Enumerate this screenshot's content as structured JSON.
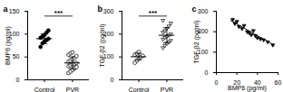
{
  "chart_data": [
    {
      "type": "dotplot",
      "title": "a",
      "y_label": "BMP6 (pg/ml)",
      "ylim": [
        0,
        150
      ],
      "yticks": [
        0,
        50,
        100,
        150
      ],
      "annotation": "***",
      "series": [
        {
          "name": "Control",
          "color": "#000000",
          "marker": "circle",
          "values": [
            72,
            80,
            84,
            87,
            90,
            92,
            95,
            98,
            103,
            108
          ],
          "mean": 90,
          "error": 11
        },
        {
          "name": "PVR",
          "color": "#000000",
          "marker": "circle-open",
          "values": [
            15,
            18,
            22,
            25,
            28,
            30,
            32,
            34,
            35,
            37,
            40,
            42,
            45,
            48,
            52,
            55,
            58,
            60
          ],
          "mean": 37,
          "error": 13
        }
      ]
    },
    {
      "type": "dotplot",
      "title": "b",
      "y_label": "TGF-β2 (pg/ml)",
      "ylim": [
        0,
        300
      ],
      "yticks": [
        0,
        100,
        200,
        300
      ],
      "annotation": "***",
      "series": [
        {
          "name": "Control",
          "color": "#000000",
          "marker": "circle-open",
          "values": [
            75,
            85,
            95,
            100,
            105,
            110,
            115,
            122
          ],
          "mean": 101,
          "error": 15
        },
        {
          "name": "PVR",
          "color": "#000000",
          "marker": "triangle-down-open",
          "values": [
            140,
            150,
            160,
            165,
            172,
            178,
            185,
            190,
            195,
            200,
            208,
            215,
            225,
            235,
            248,
            260
          ],
          "mean": 195,
          "error": 33
        }
      ]
    },
    {
      "type": "scatter",
      "title": "c",
      "x_label": "BMP6 (pg/ml)",
      "y_label": "TGF-β2 (pg/ml)",
      "xlim": [
        0,
        60
      ],
      "xticks": [
        0,
        20,
        40,
        60
      ],
      "ylim": [
        0,
        300
      ],
      "yticks": [
        0,
        100,
        200,
        300
      ],
      "color": "#000000",
      "marker": "triangle-down",
      "x": [
        16,
        18,
        20,
        22,
        25,
        27,
        30,
        32,
        34,
        36,
        38,
        40,
        43,
        46,
        50,
        55
      ],
      "values": [
        260,
        240,
        250,
        225,
        215,
        230,
        200,
        195,
        185,
        205,
        180,
        170,
        165,
        160,
        150,
        135
      ],
      "fit_x": [
        14,
        56
      ],
      "fit_y": [
        255,
        135
      ]
    }
  ]
}
